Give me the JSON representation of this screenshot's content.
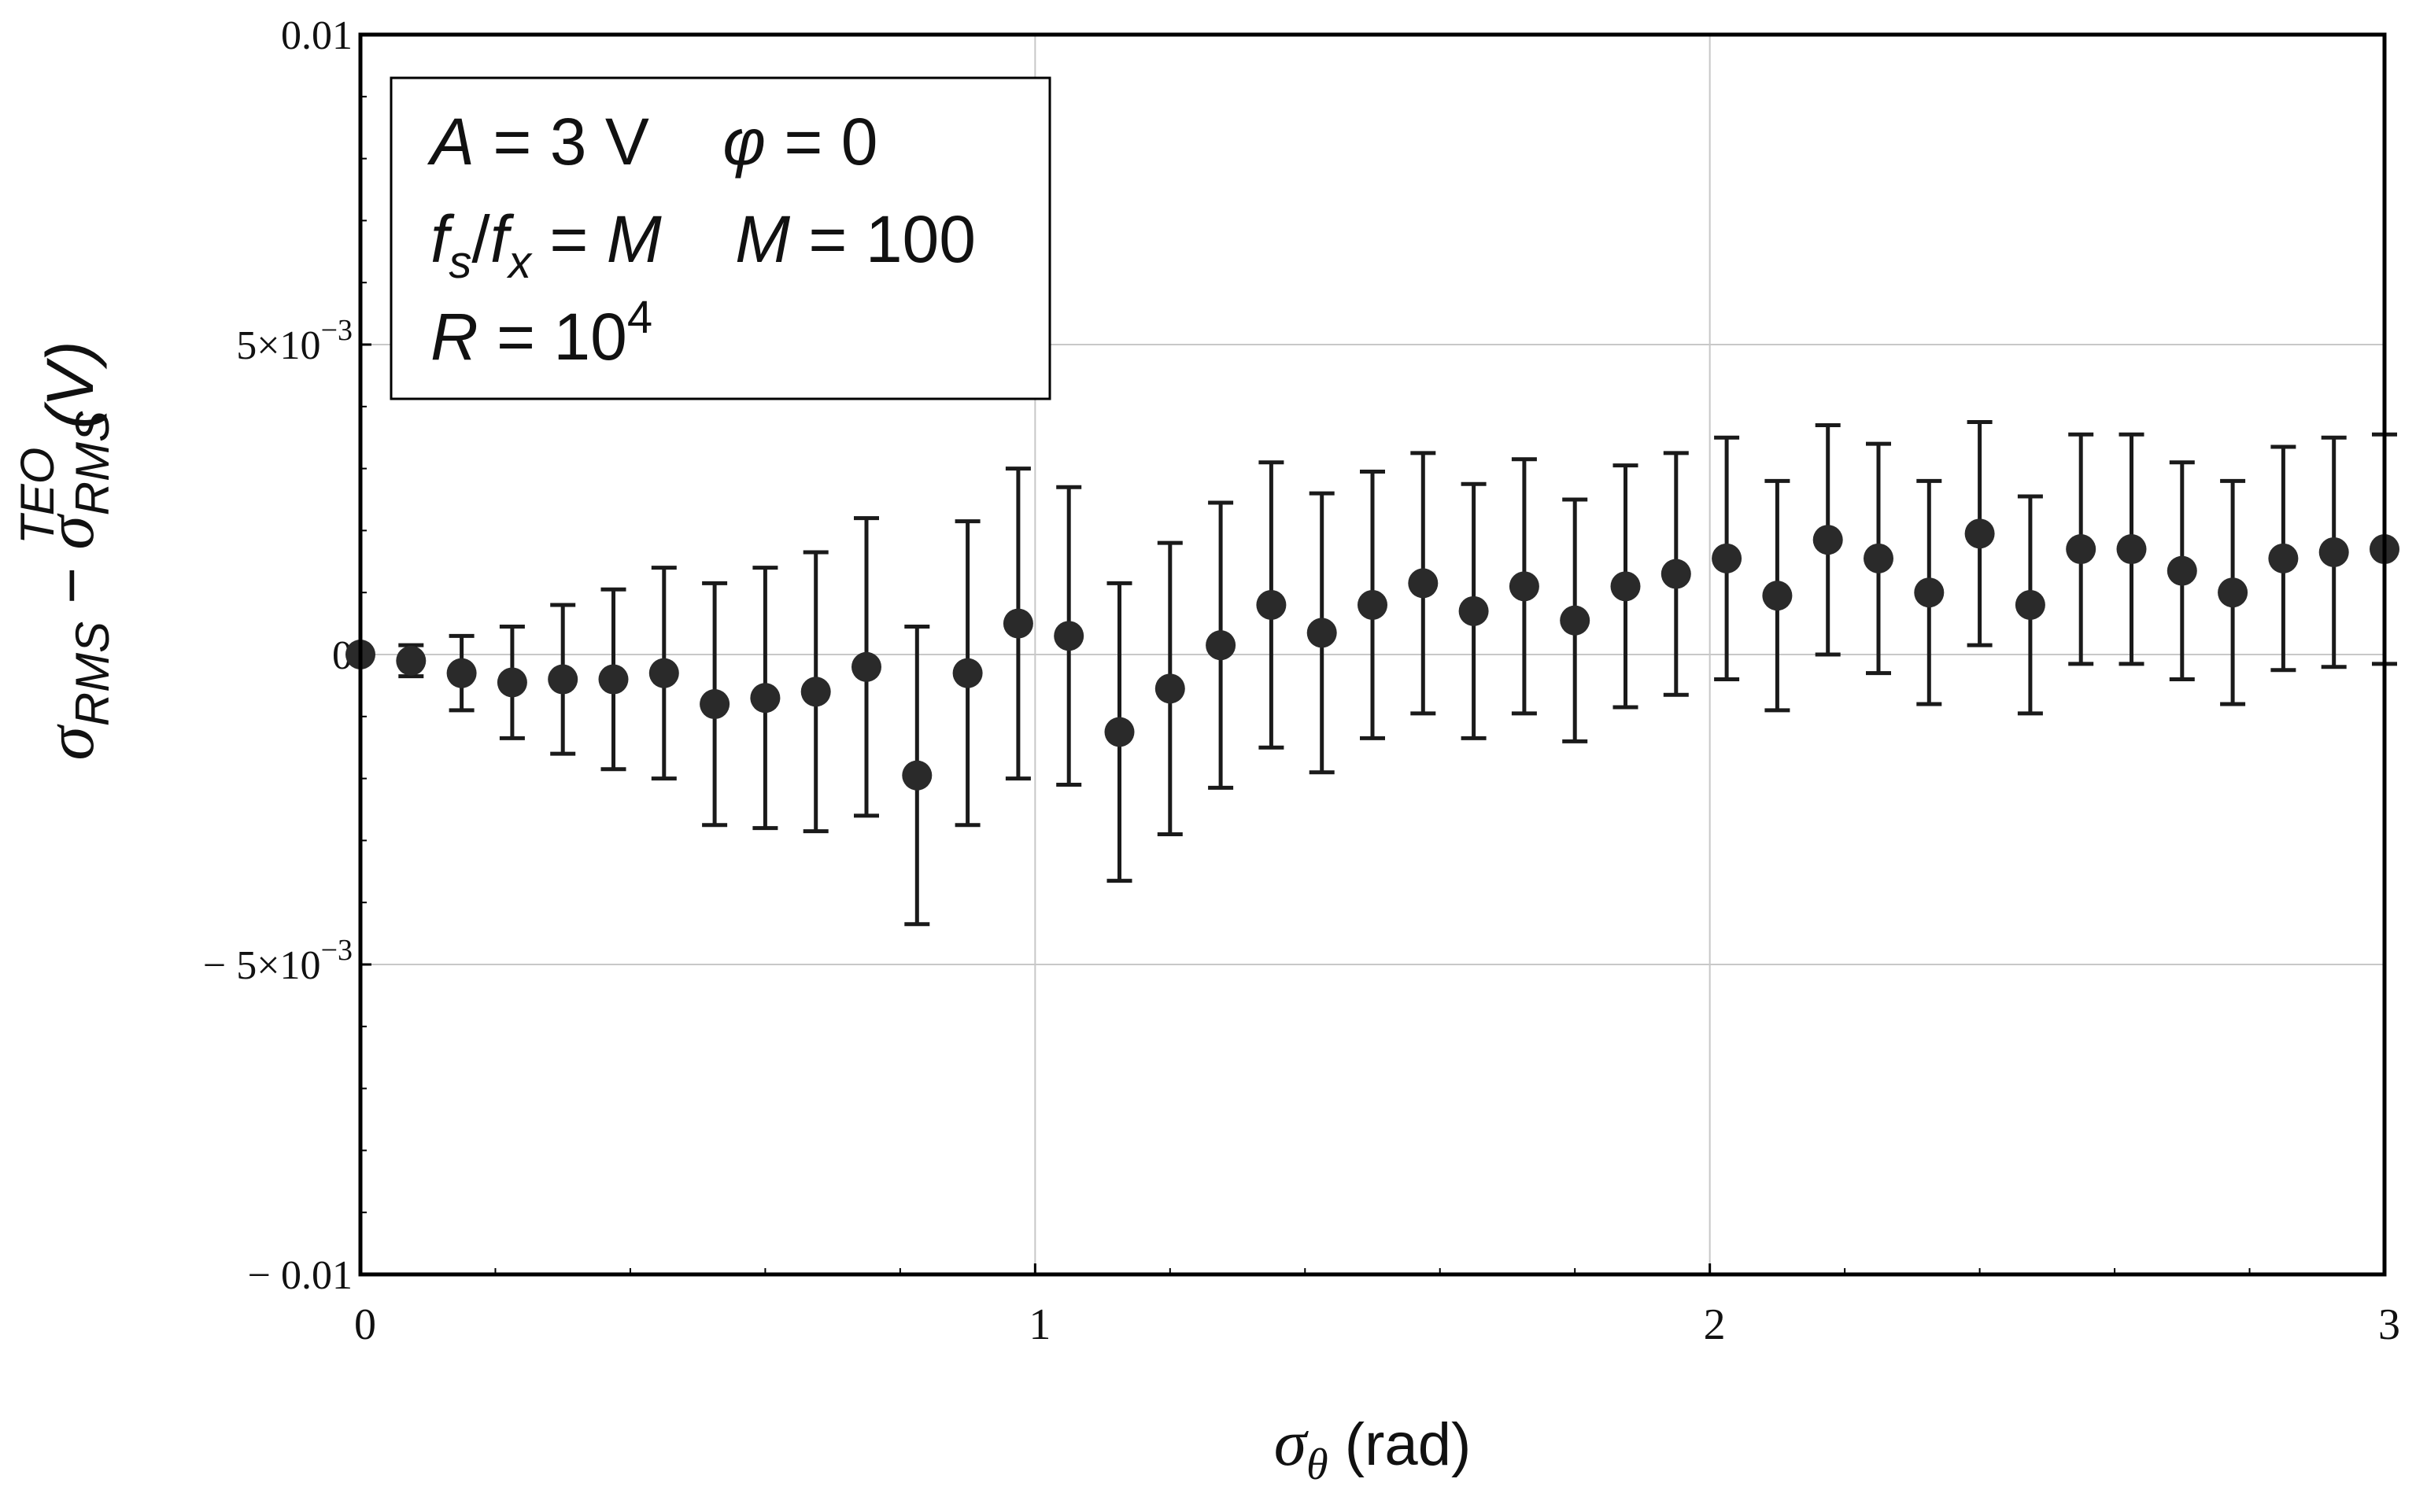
{
  "chart_data": {
    "type": "scatter",
    "title": "",
    "xlabel": {
      "symbol": "σ",
      "symbol_sub": "θ",
      "unit": "(rad)"
    },
    "ylabel": {
      "lhs": "σ",
      "lhs_sub": "RMS",
      "minus": "−",
      "rhs": "σ",
      "rhs_sub": "RMS",
      "rhs_sup": "TEO",
      "unit": "(V)"
    },
    "xlim": [
      0,
      3
    ],
    "ylim": [
      -0.01,
      0.01
    ],
    "grid": true,
    "x_ticks": [
      {
        "value": 0,
        "label": "0"
      },
      {
        "value": 1,
        "label": "1"
      },
      {
        "value": 2,
        "label": "2"
      },
      {
        "value": 3,
        "label": "3"
      }
    ],
    "y_ticks": [
      {
        "value": 0.01,
        "label": "0.01"
      },
      {
        "value": 0.005,
        "label": "5×10",
        "exp": "−3"
      },
      {
        "value": 0,
        "label": "0"
      },
      {
        "value": -0.005,
        "label": "− 5×10",
        "exp": "−3"
      },
      {
        "value": -0.01,
        "label": "− 0.01"
      }
    ],
    "legend_box": {
      "placement": "top-left",
      "lines": [
        [
          {
            "t": "A",
            "i": true
          },
          {
            "t": " = 3 V    "
          },
          {
            "t": "φ",
            "i": true
          },
          {
            "t": " = 0"
          }
        ],
        [
          {
            "t": "f",
            "i": true
          },
          {
            "t": "s",
            "i": true,
            "sub": true
          },
          {
            "t": "/"
          },
          {
            "t": "f",
            "i": true
          },
          {
            "t": "x",
            "i": true,
            "sub": true
          },
          {
            "t": " = "
          },
          {
            "t": "M",
            "i": true
          },
          {
            "t": "    "
          },
          {
            "t": "M",
            "i": true
          },
          {
            "t": " = 100"
          }
        ],
        [
          {
            "t": "R",
            "i": true
          },
          {
            "t": " = 10"
          },
          {
            "t": "4",
            "sup": true
          }
        ]
      ]
    },
    "series": [
      {
        "x": [
          0.0,
          0.075,
          0.15,
          0.225,
          0.3,
          0.375,
          0.45,
          0.525,
          0.6,
          0.675,
          0.75,
          0.825,
          0.9,
          0.975,
          1.05,
          1.125,
          1.2,
          1.275,
          1.35,
          1.425,
          1.5,
          1.575,
          1.65,
          1.725,
          1.8,
          1.875,
          1.95,
          2.025,
          2.1,
          2.175,
          2.25,
          2.325,
          2.4,
          2.475,
          2.55,
          2.625,
          2.7,
          2.775,
          2.85,
          2.925,
          3.0
        ],
        "y": [
          0.0,
          -0.0001,
          -0.0003,
          -0.00045,
          -0.0004,
          -0.0004,
          -0.0003,
          -0.0008,
          -0.0007,
          -0.0006,
          -0.0002,
          -0.00195,
          -0.0003,
          0.0005,
          0.0003,
          -0.00125,
          -0.00055,
          0.00015,
          0.0008,
          0.00035,
          0.0008,
          0.00115,
          0.0007,
          0.0011,
          0.00055,
          0.0011,
          0.0013,
          0.00155,
          0.00095,
          0.00185,
          0.00155,
          0.001,
          0.00195,
          0.0008,
          0.0017,
          0.0017,
          0.00135,
          0.001,
          0.00155,
          0.00165,
          0.0017
        ],
        "err": [
          0.0,
          0.00025,
          0.0006,
          0.0009,
          0.0012,
          0.00145,
          0.0017,
          0.00195,
          0.0021,
          0.00225,
          0.0024,
          0.0024,
          0.00245,
          0.0025,
          0.0024,
          0.0024,
          0.00235,
          0.0023,
          0.0023,
          0.00225,
          0.00215,
          0.0021,
          0.00205,
          0.00205,
          0.00195,
          0.00195,
          0.00195,
          0.00195,
          0.00185,
          0.00185,
          0.00185,
          0.0018,
          0.0018,
          0.00175,
          0.00185,
          0.00185,
          0.00175,
          0.0018,
          0.0018,
          0.00185,
          0.00185
        ]
      }
    ],
    "colors": {
      "marker": "#2a2a2a",
      "frame": "#000000",
      "grid": "#c8c8c8"
    }
  }
}
